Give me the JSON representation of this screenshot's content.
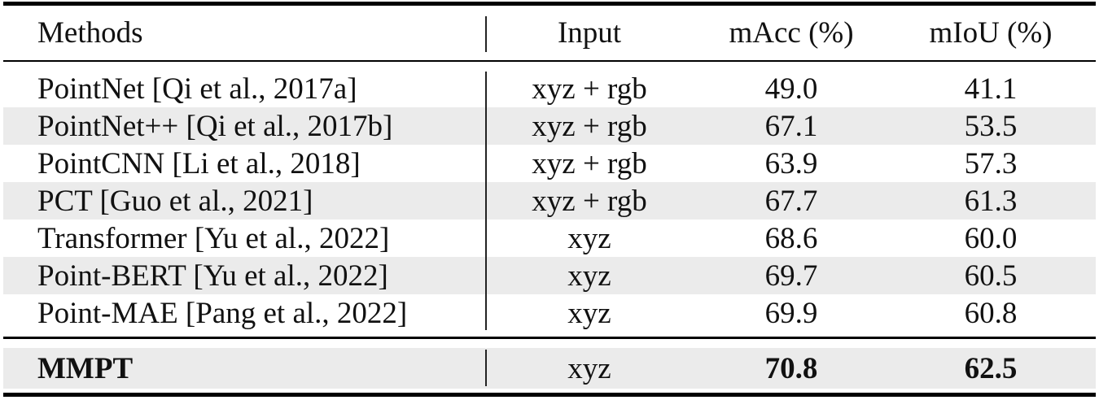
{
  "table": {
    "header": {
      "methods": "Methods",
      "input": "Input",
      "macc": "mAcc (%)",
      "miou": "mIoU (%)"
    },
    "rows": [
      {
        "method": "PointNet [Qi et al., 2017a]",
        "input": "xyz + rgb",
        "macc": "49.0",
        "miou": "41.1"
      },
      {
        "method": "PointNet++ [Qi et al., 2017b]",
        "input": "xyz + rgb",
        "macc": "67.1",
        "miou": "53.5"
      },
      {
        "method": "PointCNN [Li et al., 2018]",
        "input": "xyz + rgb",
        "macc": "63.9",
        "miou": "57.3"
      },
      {
        "method": "PCT [Guo et al., 2021]",
        "input": "xyz + rgb",
        "macc": "67.7",
        "miou": "61.3"
      },
      {
        "method": "Transformer [Yu et al., 2022]",
        "input": "xyz",
        "macc": "68.6",
        "miou": "60.0"
      },
      {
        "method": "Point-BERT [Yu et al., 2022]",
        "input": "xyz",
        "macc": "69.7",
        "miou": "60.5"
      },
      {
        "method": "Point-MAE [Pang et al., 2022]",
        "input": "xyz",
        "macc": "69.9",
        "miou": "60.8"
      }
    ],
    "final": {
      "method": "MMPT",
      "input": "xyz",
      "macc": "70.8",
      "miou": "62.5"
    }
  }
}
